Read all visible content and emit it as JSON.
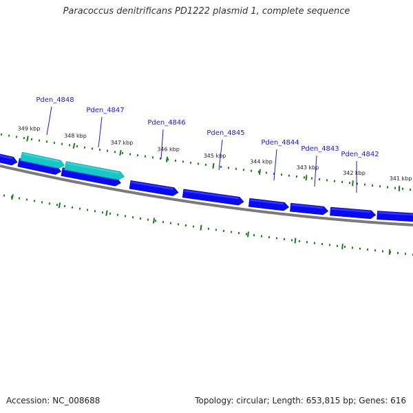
{
  "title": "Paracoccus denitrificans PD1222 plasmid 1, complete sequence",
  "footer": {
    "accession_label": "Accession:",
    "accession": "NC_008688",
    "topology_label": "Topology:",
    "topology": "circular",
    "length_label": "Length:",
    "length": "653,815 bp",
    "genes_label": "Genes:",
    "genes": "616"
  },
  "colors": {
    "gene_fill": "#0a0af0",
    "highlight_fill": "#17c6c6",
    "backbone": "#7a7a7a",
    "tick": "#1a7a1a",
    "label": "#1a1acc"
  },
  "ruler_labels": [
    "349 kbp",
    "348 kbp",
    "347 kbp",
    "346 kbp",
    "345 kbp",
    "344 kbp",
    "343 kbp",
    "342 kbp",
    "341 kbp"
  ],
  "genes": [
    {
      "name": "Pden_4848",
      "highlighted": true
    },
    {
      "name": "Pden_4847",
      "highlighted": true
    },
    {
      "name": "Pden_4846",
      "highlighted": false
    },
    {
      "name": "Pden_4845",
      "highlighted": false
    },
    {
      "name": "Pden_4844",
      "highlighted": false
    },
    {
      "name": "Pden_4843",
      "highlighted": false
    },
    {
      "name": "Pden_4842",
      "highlighted": false
    }
  ]
}
